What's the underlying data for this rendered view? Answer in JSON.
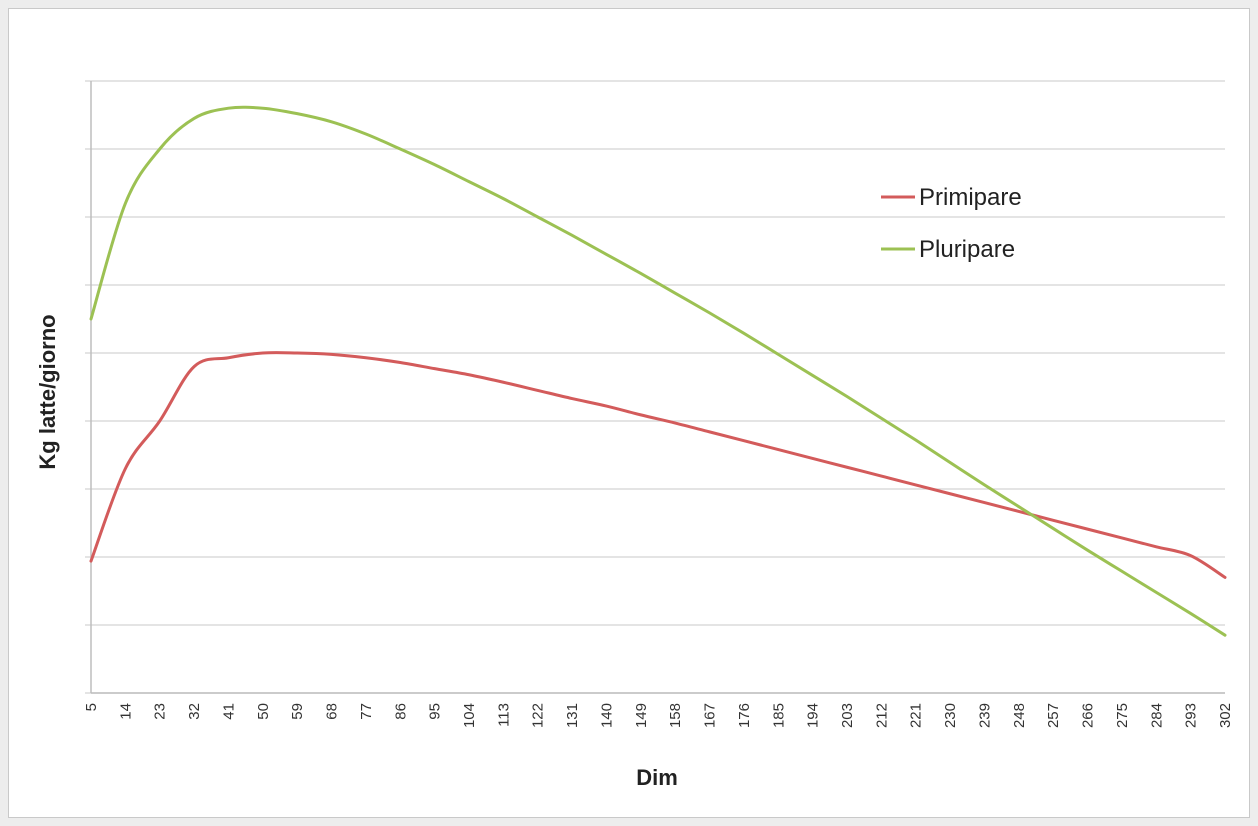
{
  "chart_data": {
    "type": "line",
    "title": "",
    "xlabel": "Dim",
    "ylabel": "Kg latte/giorno",
    "y_tick_labels_shown": false,
    "grid": "horizontal",
    "legend_position": "top-right",
    "x_ticks": [
      "5",
      "14",
      "23",
      "32",
      "41",
      "50",
      "59",
      "68",
      "77",
      "86",
      "95",
      "104",
      "113",
      "122",
      "131",
      "140",
      "149",
      "158",
      "167",
      "176",
      "185",
      "194",
      "203",
      "212",
      "221",
      "230",
      "239",
      "248",
      "257",
      "266",
      "275",
      "284",
      "293",
      "302"
    ],
    "ylim": [
      0,
      9
    ],
    "y_grid_count": 9,
    "series": [
      {
        "name": "Primipare",
        "color": "#d35b5b",
        "x": [
          5,
          14,
          23,
          32,
          41,
          50,
          59,
          68,
          77,
          86,
          95,
          104,
          113,
          122,
          131,
          140,
          149,
          158,
          167,
          176,
          185,
          194,
          203,
          212,
          221,
          230,
          239,
          248,
          257,
          266,
          275,
          284,
          293,
          302
        ],
        "values": [
          1.94,
          3.3,
          4.0,
          4.8,
          4.93,
          5.0,
          5.0,
          4.98,
          4.93,
          4.86,
          4.77,
          4.68,
          4.57,
          4.45,
          4.33,
          4.22,
          4.09,
          3.97,
          3.84,
          3.71,
          3.58,
          3.45,
          3.32,
          3.19,
          3.06,
          2.93,
          2.8,
          2.67,
          2.54,
          2.41,
          2.28,
          2.15,
          2.02,
          1.7
        ]
      },
      {
        "name": "Pluripare",
        "color": "#9cc153",
        "x": [
          5,
          14,
          23,
          32,
          41,
          50,
          59,
          68,
          77,
          86,
          95,
          104,
          113,
          122,
          131,
          140,
          149,
          158,
          167,
          176,
          185,
          194,
          203,
          212,
          221,
          230,
          239,
          248,
          257,
          266,
          275,
          284,
          293,
          302
        ],
        "values": [
          5.5,
          7.2,
          8.0,
          8.45,
          8.6,
          8.6,
          8.52,
          8.4,
          8.22,
          8.0,
          7.77,
          7.52,
          7.27,
          7.0,
          6.73,
          6.45,
          6.17,
          5.88,
          5.59,
          5.29,
          4.98,
          4.67,
          4.36,
          4.04,
          3.72,
          3.39,
          3.06,
          2.74,
          2.42,
          2.1,
          1.79,
          1.48,
          1.17,
          0.85
        ]
      }
    ]
  }
}
